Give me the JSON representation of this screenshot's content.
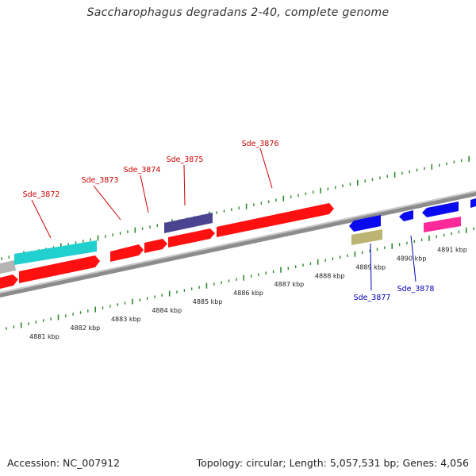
{
  "title": "Saccharophagus degradans 2-40, complete genome",
  "footer": {
    "accession": "Accession: NC_007912",
    "summary": "Topology: circular; Length: 5,057,531 bp; Genes: 4,056"
  },
  "colors": {
    "forward_gene": "#ff1010",
    "reverse_gene": "#0a0aee",
    "cyan_feature": "#22d0d0",
    "purple_feature": "#4a4490",
    "khaki_feature": "#bcb472",
    "pink_feature": "#ff2a9a",
    "gray_feature": "#b4b4b4",
    "backbone": "#888888",
    "tick": "#2a8a2a",
    "forward_label": "#cc0000",
    "reverse_label": "#0000bb"
  },
  "kbp_labels": [
    {
      "kbp": 4881,
      "text": "4881 kbp"
    },
    {
      "kbp": 4882,
      "text": "4882 kbp"
    },
    {
      "kbp": 4883,
      "text": "4883 kbp"
    },
    {
      "kbp": 4884,
      "text": "4884 kbp"
    },
    {
      "kbp": 4885,
      "text": "4885 kbp"
    },
    {
      "kbp": 4886,
      "text": "4886 kbp"
    },
    {
      "kbp": 4887,
      "text": "4887 kbp"
    },
    {
      "kbp": 4888,
      "text": "4888 kbp"
    },
    {
      "kbp": 4889,
      "text": "4889 kbp"
    },
    {
      "kbp": 4890,
      "text": "4890 kbp"
    },
    {
      "kbp": 4891,
      "text": "4891 kbp"
    }
  ],
  "gene_labels": [
    {
      "name": "sde-3872-label",
      "text": "Sde_3872",
      "strand": "forward"
    },
    {
      "name": "sde-3873-label",
      "text": "Sde_3873",
      "strand": "forward"
    },
    {
      "name": "sde-3874-label",
      "text": "Sde_3874",
      "strand": "forward"
    },
    {
      "name": "sde-3875-label",
      "text": "Sde_3875",
      "strand": "forward"
    },
    {
      "name": "sde-3876-label",
      "text": "Sde_3876",
      "strand": "forward"
    },
    {
      "name": "sde-3877-label",
      "text": "Sde_3877",
      "strand": "reverse"
    },
    {
      "name": "sde-3878-label",
      "text": "Sde_3878",
      "strand": "reverse"
    }
  ]
}
